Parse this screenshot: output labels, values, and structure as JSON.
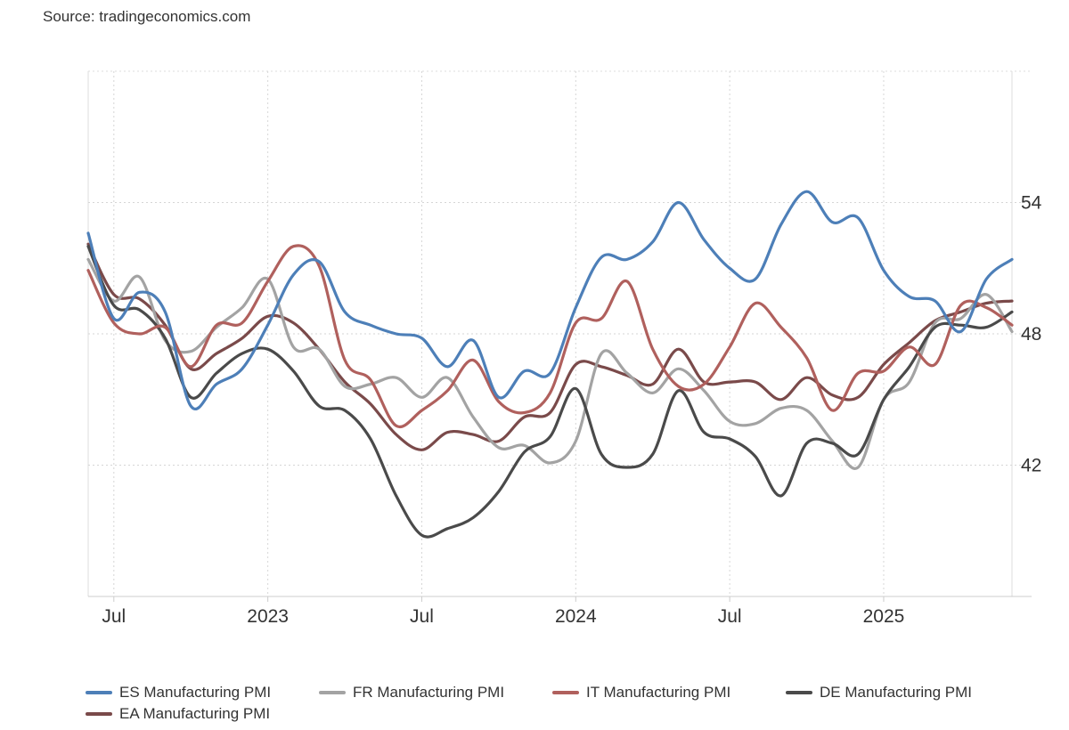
{
  "source_label": "Source: tradingeconomics.com",
  "chart_data": {
    "type": "line",
    "title": "",
    "xlabel": "",
    "ylabel": "",
    "ylim": [
      36,
      60
    ],
    "y_ticks": [
      42,
      48,
      54
    ],
    "x_tick_labels": [
      "Jul",
      "2023",
      "Jul",
      "2024",
      "Jul",
      "2025"
    ],
    "x_tick_dates": [
      "2022-07",
      "2023-01",
      "2023-07",
      "2024-01",
      "2024-07",
      "2025-01"
    ],
    "x_range": [
      "2022-06",
      "2025-06"
    ],
    "grid": true,
    "legend_position": "bottom",
    "x": [
      "2022-06",
      "2022-07",
      "2022-08",
      "2022-09",
      "2022-10",
      "2022-11",
      "2022-12",
      "2023-01",
      "2023-02",
      "2023-03",
      "2023-04",
      "2023-05",
      "2023-06",
      "2023-07",
      "2023-08",
      "2023-09",
      "2023-10",
      "2023-11",
      "2023-12",
      "2024-01",
      "2024-02",
      "2024-03",
      "2024-04",
      "2024-05",
      "2024-06",
      "2024-07",
      "2024-08",
      "2024-09",
      "2024-10",
      "2024-11",
      "2024-12",
      "2025-01",
      "2025-02",
      "2025-03",
      "2025-04",
      "2025-05",
      "2025-06"
    ],
    "series": [
      {
        "name": "ES Manufacturing PMI",
        "color": "#4d7fb8",
        "values": [
          52.6,
          48.7,
          49.9,
          49.0,
          44.7,
          45.7,
          46.4,
          48.4,
          50.7,
          51.3,
          49.0,
          48.4,
          48.0,
          47.8,
          46.5,
          47.7,
          45.1,
          46.3,
          46.2,
          49.2,
          51.5,
          51.4,
          52.2,
          54.0,
          52.3,
          51.0,
          50.5,
          53.0,
          54.5,
          53.1,
          53.3,
          50.9,
          49.7,
          49.5,
          48.1,
          50.5,
          51.4
        ]
      },
      {
        "name": "FR Manufacturing PMI",
        "color": "#a3a3a3",
        "values": [
          51.4,
          49.5,
          50.6,
          47.7,
          47.2,
          48.3,
          49.2,
          50.5,
          47.4,
          47.3,
          45.6,
          45.7,
          46.0,
          45.1,
          46.0,
          44.2,
          42.8,
          42.9,
          42.1,
          43.1,
          47.1,
          46.2,
          45.3,
          46.4,
          45.4,
          44.0,
          43.9,
          44.6,
          44.5,
          43.1,
          41.9,
          45.0,
          45.8,
          48.5,
          48.7,
          49.8,
          48.1
        ]
      },
      {
        "name": "IT Manufacturing PMI",
        "color": "#b0605d",
        "values": [
          50.9,
          48.5,
          48.0,
          48.3,
          46.5,
          48.4,
          48.5,
          50.4,
          52.0,
          51.1,
          46.8,
          45.9,
          43.8,
          44.5,
          45.4,
          46.8,
          44.9,
          44.4,
          45.3,
          48.5,
          48.7,
          50.4,
          47.3,
          45.6,
          45.7,
          47.4,
          49.4,
          48.3,
          46.9,
          44.5,
          46.2,
          46.3,
          47.4,
          46.6,
          49.3,
          49.2,
          48.4
        ]
      },
      {
        "name": "DE Manufacturing PMI",
        "color": "#4a4a4a",
        "values": [
          52.0,
          49.3,
          49.1,
          47.8,
          45.1,
          46.2,
          47.1,
          47.3,
          46.3,
          44.7,
          44.5,
          43.2,
          40.6,
          38.8,
          39.1,
          39.6,
          40.8,
          42.6,
          43.3,
          45.5,
          42.5,
          41.9,
          42.5,
          45.4,
          43.5,
          43.2,
          42.4,
          40.6,
          43.0,
          43.0,
          42.5,
          45.0,
          46.5,
          48.3,
          48.4,
          48.3,
          49.0
        ]
      },
      {
        "name": "EA Manufacturing PMI",
        "color": "#7a4a4a",
        "values": [
          52.1,
          49.8,
          49.6,
          48.4,
          46.4,
          47.1,
          47.8,
          48.8,
          48.5,
          47.3,
          45.8,
          44.8,
          43.4,
          42.7,
          43.5,
          43.4,
          43.1,
          44.2,
          44.4,
          46.6,
          46.5,
          46.1,
          45.7,
          47.3,
          45.8,
          45.8,
          45.8,
          45.0,
          46.0,
          45.2,
          45.1,
          46.6,
          47.6,
          48.6,
          49.0,
          49.4,
          49.5
        ]
      }
    ]
  }
}
